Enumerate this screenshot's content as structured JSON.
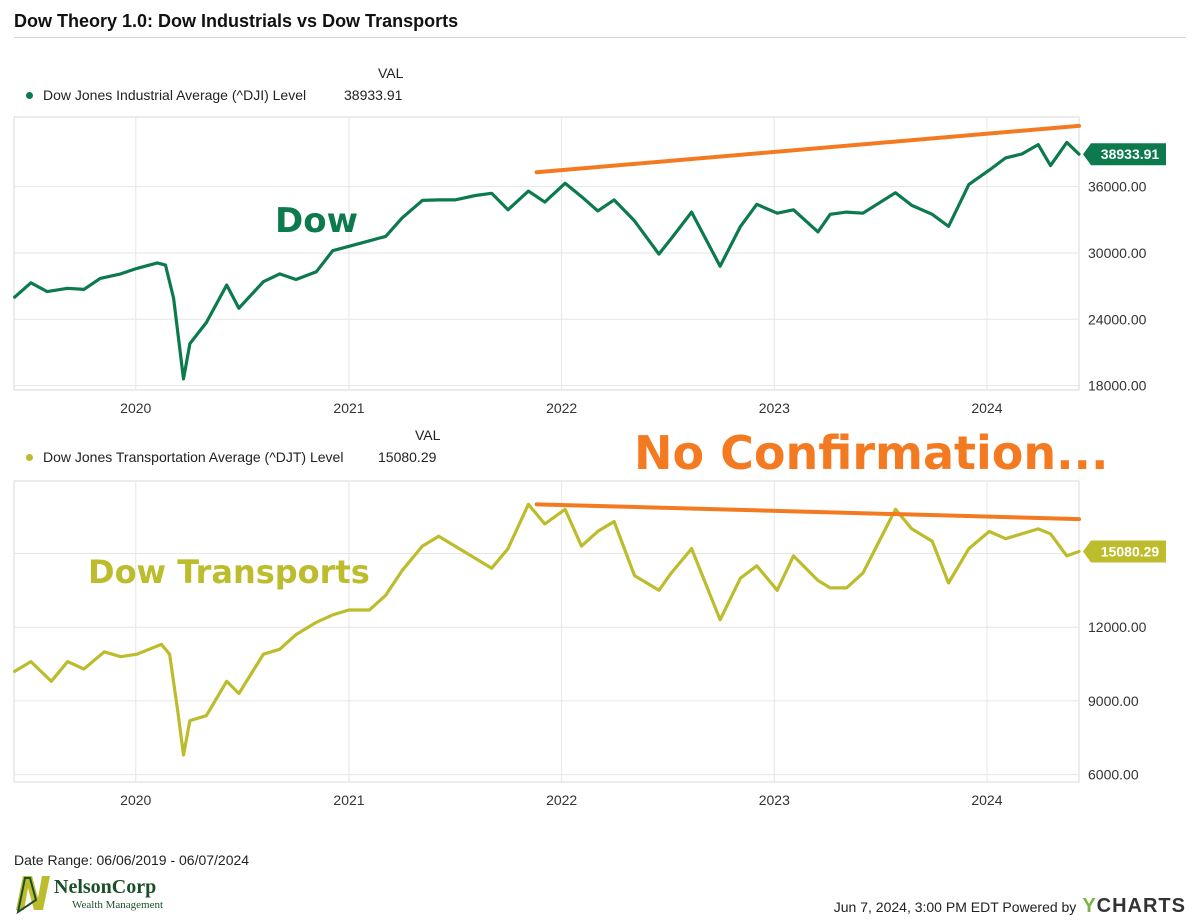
{
  "title": "Dow Theory 1.0: Dow Industrials vs Dow Transports",
  "colors": {
    "dow": "#0c7a4d",
    "transports": "#bcbc2c",
    "annotation": "#f47a22",
    "grid": "#e6e6e6",
    "axis_text": "#333333"
  },
  "legend_top": {
    "header": "VAL",
    "name": "Dow Jones Industrial Average (^DJI) Level",
    "value": "38933.91"
  },
  "legend_bottom": {
    "header": "VAL",
    "name": "Dow Jones Transportation Average (^DJT) Level",
    "value": "15080.29"
  },
  "annotations": {
    "dow_label": "Dow",
    "transports_label": "Dow Transports",
    "headline": "No Confirmation..."
  },
  "footer": {
    "date_range": "Date Range: 06/06/2019 - 06/07/2024",
    "timestamp": "Jun 7, 2024, 3:00 PM EDT Powered by",
    "brand": "YCHARTS"
  },
  "logo": {
    "name": "NelsonCorp",
    "sub": "Wealth Management"
  },
  "chart_data": [
    {
      "type": "line",
      "title": "Dow Jones Industrial Average (^DJI) Level",
      "x_range": [
        "2019-06-06",
        "2024-06-07"
      ],
      "xticks": [
        "2020",
        "2021",
        "2022",
        "2023",
        "2024"
      ],
      "yticks": [
        "18000.00",
        "24000.00",
        "30000.00",
        "36000.00"
      ],
      "ylim": [
        17600,
        42300
      ],
      "last_value_label": "38933.91",
      "series": [
        {
          "name": "Dow Jones Industrial Average (^DJI) Level",
          "x": [
            "2019-06-07",
            "2019-07-05",
            "2019-08-02",
            "2019-09-06",
            "2019-10-04",
            "2019-11-01",
            "2019-12-06",
            "2020-01-03",
            "2020-02-07",
            "2020-02-21",
            "2020-03-06",
            "2020-03-23",
            "2020-04-03",
            "2020-05-01",
            "2020-06-05",
            "2020-06-26",
            "2020-08-07",
            "2020-09-04",
            "2020-10-02",
            "2020-11-06",
            "2020-12-04",
            "2021-01-01",
            "2021-02-05",
            "2021-03-05",
            "2021-04-02",
            "2021-05-07",
            "2021-06-04",
            "2021-07-02",
            "2021-08-06",
            "2021-09-03",
            "2021-10-01",
            "2021-11-05",
            "2021-12-03",
            "2022-01-07",
            "2022-02-04",
            "2022-03-04",
            "2022-04-01",
            "2022-05-06",
            "2022-06-17",
            "2022-07-08",
            "2022-08-12",
            "2022-09-30",
            "2022-11-04",
            "2022-12-02",
            "2023-01-06",
            "2023-02-03",
            "2023-03-17",
            "2023-04-07",
            "2023-05-05",
            "2023-06-02",
            "2023-07-28",
            "2023-08-25",
            "2023-09-29",
            "2023-10-27",
            "2023-12-01",
            "2024-01-05",
            "2024-02-02",
            "2024-03-01",
            "2024-03-29",
            "2024-04-19",
            "2024-05-17",
            "2024-06-07"
          ],
          "values": [
            26000,
            27300,
            26500,
            26800,
            26700,
            27700,
            28100,
            28600,
            29100,
            28900,
            25900,
            18600,
            21800,
            23700,
            27100,
            25000,
            27400,
            28100,
            27600,
            28300,
            30200,
            30600,
            31100,
            31500,
            33150,
            34750,
            34800,
            34800,
            35200,
            35400,
            33900,
            35600,
            34600,
            36300,
            35100,
            33800,
            34800,
            32900,
            29900,
            31300,
            33700,
            28800,
            32400,
            34400,
            33600,
            33900,
            31900,
            33500,
            33700,
            33600,
            35450,
            34300,
            33500,
            32400,
            36200,
            37500,
            38600,
            38950,
            39800,
            37900,
            40000,
            38933.91
          ]
        }
      ],
      "trendline": {
        "x": [
          "2021-11-19",
          "2024-06-07"
        ],
        "values": [
          37300,
          41500
        ]
      }
    },
    {
      "type": "line",
      "title": "Dow Jones Transportation Average (^DJT) Level",
      "x_range": [
        "2019-06-06",
        "2024-06-07"
      ],
      "xticks": [
        "2020",
        "2021",
        "2022",
        "2023",
        "2024"
      ],
      "yticks": [
        "6000.00",
        "9000.00",
        "12000.00",
        "15000.00"
      ],
      "ylim": [
        5700,
        17950
      ],
      "last_value_label": "15080.29",
      "series": [
        {
          "name": "Dow Jones Transportation Average (^DJT) Level",
          "x": [
            "2019-06-07",
            "2019-07-05",
            "2019-08-09",
            "2019-09-06",
            "2019-10-04",
            "2019-11-08",
            "2019-12-06",
            "2020-01-03",
            "2020-02-14",
            "2020-02-28",
            "2020-03-13",
            "2020-03-23",
            "2020-04-03",
            "2020-05-01",
            "2020-06-05",
            "2020-06-26",
            "2020-08-07",
            "2020-09-04",
            "2020-10-02",
            "2020-11-06",
            "2020-12-04",
            "2021-01-01",
            "2021-02-05",
            "2021-03-05",
            "2021-04-02",
            "2021-05-07",
            "2021-06-04",
            "2021-07-02",
            "2021-08-06",
            "2021-09-03",
            "2021-10-01",
            "2021-11-05",
            "2021-12-03",
            "2022-01-07",
            "2022-02-04",
            "2022-03-04",
            "2022-04-01",
            "2022-05-06",
            "2022-06-17",
            "2022-07-08",
            "2022-08-12",
            "2022-09-30",
            "2022-11-04",
            "2022-12-02",
            "2023-01-06",
            "2023-02-03",
            "2023-03-17",
            "2023-04-07",
            "2023-05-05",
            "2023-06-02",
            "2023-07-28",
            "2023-08-25",
            "2023-09-29",
            "2023-10-27",
            "2023-12-01",
            "2024-01-05",
            "2024-02-02",
            "2024-03-01",
            "2024-03-29",
            "2024-04-19",
            "2024-05-17",
            "2024-06-07"
          ],
          "values": [
            10200,
            10600,
            9800,
            10600,
            10300,
            11000,
            10800,
            10900,
            11300,
            10900,
            8600,
            6800,
            8200,
            8400,
            9800,
            9300,
            10900,
            11100,
            11700,
            12200,
            12500,
            12700,
            12700,
            13300,
            14300,
            15300,
            15700,
            15300,
            14800,
            14400,
            15200,
            17000,
            16200,
            16800,
            15300,
            15900,
            16300,
            14100,
            13500,
            14200,
            15200,
            12300,
            14000,
            14500,
            13500,
            14900,
            13900,
            13600,
            13600,
            14200,
            16800,
            16000,
            15500,
            13800,
            15200,
            15900,
            15600,
            15800,
            16000,
            15800,
            14900,
            15080.29
          ]
        }
      ],
      "trendline": {
        "x": [
          "2021-11-19",
          "2024-06-07"
        ],
        "values": [
          17000,
          16400
        ]
      }
    }
  ]
}
